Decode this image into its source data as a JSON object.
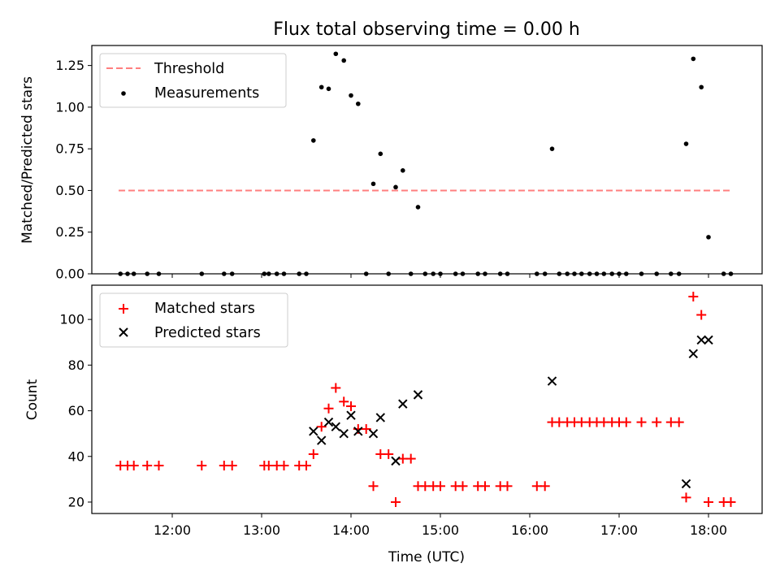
{
  "title": "Flux total observing time = 0.00 h",
  "x_axis_label": "Time (UTC)",
  "x_tick_labels": [
    "12:00",
    "13:00",
    "14:00",
    "15:00",
    "16:00",
    "17:00",
    "18:00"
  ],
  "chart_data": [
    {
      "type": "scatter",
      "panel": "top",
      "title": "Flux total observing time = 0.00 h",
      "ylabel": "Matched/Predicted stars",
      "xlabel": "",
      "x_unit": "hours UTC",
      "xlim": [
        11.1,
        18.6
      ],
      "ylim": [
        0,
        1.37
      ],
      "yticks": [
        "0.00",
        "0.25",
        "0.50",
        "0.75",
        "1.00",
        "1.25"
      ],
      "ytick_values": [
        0,
        0.25,
        0.5,
        0.75,
        1.0,
        1.25
      ],
      "legend_placement": "upper-left",
      "series": [
        {
          "name": "Threshold",
          "kind": "line",
          "style": "dashed",
          "color": "#ff7f7f",
          "x": [
            11.4,
            18.25
          ],
          "y": [
            0.5,
            0.5
          ]
        },
        {
          "name": "Measurements",
          "kind": "scatter",
          "marker": "dot",
          "color": "#000000",
          "x": [
            11.42,
            11.5,
            11.57,
            11.72,
            11.85,
            12.33,
            12.58,
            12.67,
            13.03,
            13.08,
            13.17,
            13.25,
            13.42,
            13.5,
            13.58,
            13.67,
            13.75,
            13.83,
            13.92,
            14.0,
            14.08,
            14.17,
            14.25,
            14.33,
            14.42,
            14.5,
            14.58,
            14.67,
            14.75,
            14.83,
            14.92,
            15.0,
            15.17,
            15.25,
            15.42,
            15.5,
            15.67,
            15.75,
            16.08,
            16.17,
            16.25,
            16.33,
            16.42,
            16.5,
            16.58,
            16.67,
            16.75,
            16.83,
            16.92,
            17.0,
            17.08,
            17.25,
            17.42,
            17.58,
            17.67,
            17.75,
            17.83,
            17.92,
            18.0,
            18.17,
            18.25
          ],
          "y": [
            0,
            0,
            0,
            0,
            0,
            0,
            0,
            0,
            0,
            0,
            0,
            0,
            0,
            0,
            0.8,
            1.12,
            1.11,
            1.32,
            1.28,
            1.07,
            1.02,
            0,
            0.54,
            0.72,
            0,
            0.52,
            0.62,
            0,
            0.4,
            0,
            0,
            0,
            0,
            0,
            0,
            0,
            0,
            0,
            0,
            0,
            0.75,
            0,
            0,
            0,
            0,
            0,
            0,
            0,
            0,
            0,
            0,
            0,
            0,
            0,
            0,
            0.78,
            1.29,
            1.12,
            0.22,
            0,
            0
          ]
        }
      ]
    },
    {
      "type": "scatter",
      "panel": "bottom",
      "ylabel": "Count",
      "xlabel": "Time (UTC)",
      "x_unit": "hours UTC",
      "xlim": [
        11.1,
        18.6
      ],
      "ylim": [
        15,
        115
      ],
      "yticks": [
        "20",
        "40",
        "60",
        "80",
        "100"
      ],
      "ytick_values": [
        20,
        40,
        60,
        80,
        100
      ],
      "legend_placement": "upper-left",
      "series": [
        {
          "name": "Matched stars",
          "kind": "scatter",
          "marker": "plus",
          "color": "#ff0000",
          "x": [
            11.42,
            11.5,
            11.57,
            11.72,
            11.85,
            12.33,
            12.58,
            12.67,
            13.03,
            13.08,
            13.17,
            13.25,
            13.42,
            13.5,
            13.58,
            13.67,
            13.75,
            13.83,
            13.92,
            14.0,
            14.08,
            14.17,
            14.25,
            14.33,
            14.42,
            14.5,
            14.58,
            14.67,
            14.75,
            14.83,
            14.92,
            15.0,
            15.17,
            15.25,
            15.42,
            15.5,
            15.67,
            15.75,
            16.08,
            16.17,
            16.25,
            16.33,
            16.42,
            16.5,
            16.58,
            16.67,
            16.75,
            16.83,
            16.92,
            17.0,
            17.08,
            17.25,
            17.42,
            17.58,
            17.67,
            17.75,
            17.83,
            17.92,
            18.0,
            18.17,
            18.25
          ],
          "y": [
            36,
            36,
            36,
            36,
            36,
            36,
            36,
            36,
            36,
            36,
            36,
            36,
            36,
            36,
            41,
            53,
            61,
            70,
            64,
            62,
            52,
            52,
            27,
            41,
            41,
            20,
            39,
            39,
            27,
            27,
            27,
            27,
            27,
            27,
            27,
            27,
            27,
            27,
            27,
            27,
            55,
            55,
            55,
            55,
            55,
            55,
            55,
            55,
            55,
            55,
            55,
            55,
            55,
            55,
            55,
            22,
            110,
            102,
            20,
            20,
            20
          ]
        },
        {
          "name": "Predicted stars",
          "kind": "scatter",
          "marker": "x",
          "color": "#000000",
          "x": [
            13.58,
            13.67,
            13.75,
            13.83,
            13.92,
            14.0,
            14.08,
            14.25,
            14.33,
            14.5,
            14.58,
            14.75,
            16.25,
            17.75,
            17.83,
            17.92,
            18.0
          ],
          "y": [
            51,
            47,
            55,
            53,
            50,
            58,
            51,
            50,
            57,
            38,
            63,
            67,
            73,
            28,
            85,
            91,
            91
          ]
        }
      ]
    }
  ]
}
